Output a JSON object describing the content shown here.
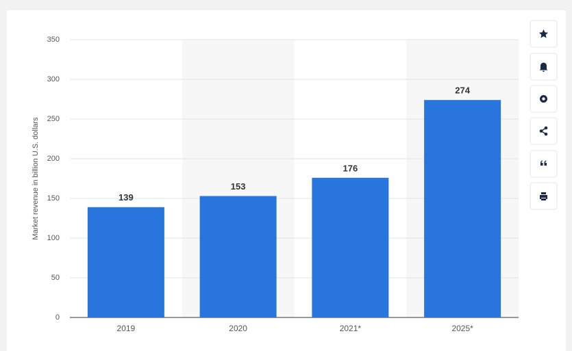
{
  "chart_data": {
    "type": "bar",
    "y_label": "Market revenue in billion U.S. dollars",
    "categories": [
      "2019",
      "2020",
      "2021*",
      "2025*"
    ],
    "values": [
      139,
      153,
      176,
      274
    ],
    "color": "#2876dd",
    "ylim": [
      0,
      350
    ],
    "yticks": [
      0,
      50,
      100,
      150,
      200,
      250,
      300,
      350
    ],
    "grid": true
  }
}
